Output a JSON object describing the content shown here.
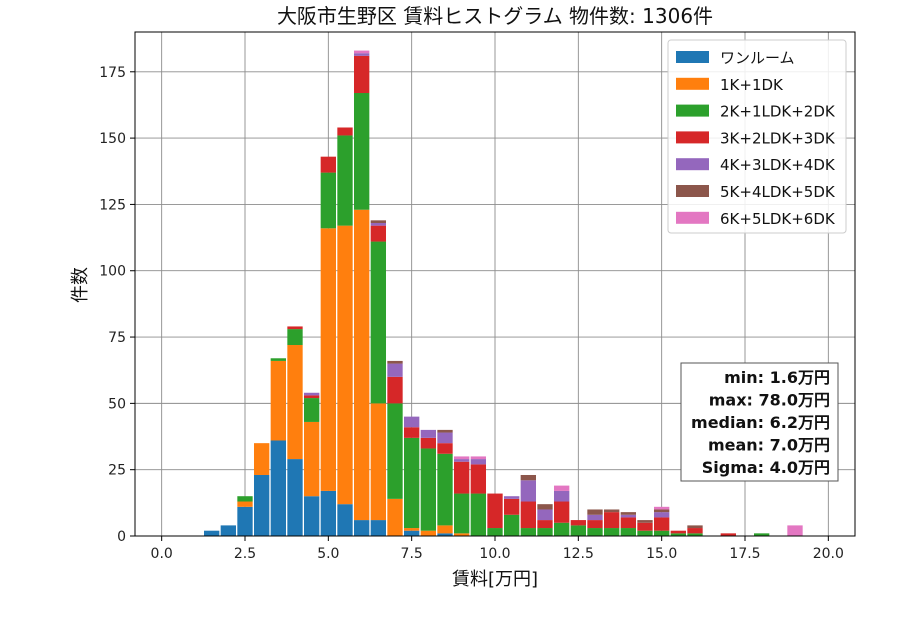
{
  "chart_data": {
    "type": "bar",
    "stacked": true,
    "title": "大阪市生野区 賃料ヒストグラム 物件数: 1306件",
    "xlabel": "賃料[万円]",
    "ylabel": "件数",
    "xlim": [
      -0.8,
      20.8
    ],
    "ylim": [
      0,
      190
    ],
    "xticks": [
      "0.0",
      "2.5",
      "5.0",
      "7.5",
      "10.0",
      "12.5",
      "15.0",
      "17.5",
      "20.0"
    ],
    "yticks": [
      "0",
      "25",
      "50",
      "75",
      "100",
      "125",
      "150",
      "175"
    ],
    "grid": true,
    "legend_position": "top-right",
    "bin_width": 0.5,
    "x": [
      1.5,
      2.0,
      2.5,
      3.0,
      3.5,
      4.0,
      4.5,
      5.0,
      5.5,
      6.0,
      6.5,
      7.0,
      7.5,
      8.0,
      8.5,
      9.0,
      9.5,
      10.0,
      10.5,
      11.0,
      11.5,
      12.0,
      12.5,
      13.0,
      13.5,
      14.0,
      14.5,
      15.0,
      15.5,
      16.0,
      16.5,
      17.0,
      17.5,
      18.0,
      18.5,
      19.0,
      19.5
    ],
    "series": [
      {
        "name": "ワンルーム",
        "color": "#1f77b4",
        "values": [
          2,
          4,
          11,
          23,
          36,
          29,
          15,
          17,
          12,
          6,
          6,
          0,
          2,
          0,
          1,
          0,
          0,
          0,
          0,
          0,
          0,
          0,
          0,
          0,
          0,
          0,
          0,
          0,
          0,
          0,
          0,
          0,
          0,
          0,
          0,
          0,
          0
        ]
      },
      {
        "name": "1K+1DK",
        "color": "#ff7f0e",
        "values": [
          0,
          0,
          2,
          12,
          30,
          43,
          28,
          99,
          105,
          117,
          44,
          14,
          1,
          2,
          3,
          1,
          0,
          0,
          0,
          0,
          0,
          0,
          0,
          0,
          0,
          0,
          0,
          0,
          0,
          0,
          0,
          0,
          0,
          0,
          0,
          0,
          0
        ]
      },
      {
        "name": "2K+1LDK+2DK",
        "color": "#2ca02c",
        "values": [
          0,
          0,
          2,
          0,
          1,
          6,
          9,
          21,
          34,
          44,
          61,
          36,
          34,
          31,
          27,
          15,
          16,
          3,
          8,
          3,
          3,
          5,
          4,
          3,
          3,
          3,
          2,
          2,
          1,
          1,
          0,
          0,
          0,
          1,
          0,
          0,
          0
        ]
      },
      {
        "name": "3K+2LDK+3DK",
        "color": "#d62728",
        "values": [
          0,
          0,
          0,
          0,
          0,
          1,
          1,
          6,
          3,
          14,
          6,
          10,
          4,
          4,
          4,
          12,
          11,
          13,
          6,
          10,
          3,
          8,
          2,
          3,
          6,
          4,
          3,
          5,
          1,
          2,
          0,
          1,
          0,
          0,
          0,
          0,
          0
        ]
      },
      {
        "name": "4K+3LDK+4DK",
        "color": "#9467bd",
        "values": [
          0,
          0,
          0,
          0,
          0,
          0,
          1,
          0,
          0,
          1,
          1,
          5,
          4,
          3,
          4,
          1,
          2,
          0,
          1,
          8,
          4,
          4,
          0,
          2,
          0,
          1,
          0,
          2,
          0,
          0,
          0,
          0,
          0,
          0,
          0,
          0,
          0
        ]
      },
      {
        "name": "5K+4LDK+5DK",
        "color": "#8c564b",
        "values": [
          0,
          0,
          0,
          0,
          0,
          0,
          0,
          0,
          0,
          0,
          1,
          1,
          0,
          0,
          1,
          0,
          0,
          0,
          0,
          2,
          2,
          0,
          0,
          2,
          1,
          1,
          1,
          1,
          0,
          1,
          0,
          0,
          0,
          0,
          0,
          0,
          0
        ]
      },
      {
        "name": "6K+5LDK+6DK",
        "color": "#e377c2",
        "values": [
          0,
          0,
          0,
          0,
          0,
          0,
          0,
          0,
          0,
          1,
          0,
          0,
          0,
          0,
          0,
          1,
          1,
          0,
          0,
          0,
          0,
          2,
          0,
          0,
          0,
          0,
          0,
          1,
          0,
          0,
          0,
          0,
          0,
          0,
          0,
          4,
          0
        ]
      }
    ],
    "stats": [
      "min: 1.6万円",
      "max: 78.0万円",
      "median: 6.2万円",
      "mean: 7.0万円",
      "Sigma: 4.0万円"
    ]
  }
}
